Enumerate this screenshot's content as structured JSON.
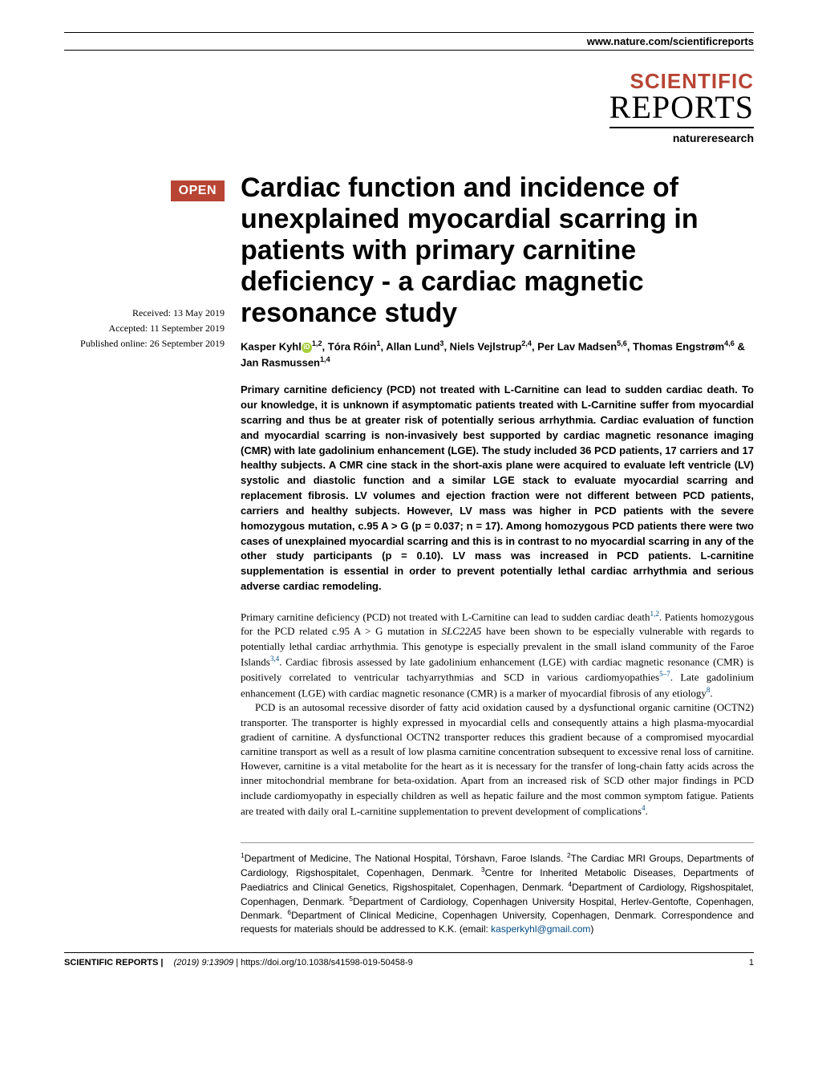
{
  "header": {
    "url": "www.nature.com/scientificreports",
    "logo_line1": "SCIENTIFIC",
    "logo_line2": "REPORTS",
    "logo_line3": "natureresearch",
    "logo_scientific_color": "#b84434"
  },
  "badge": {
    "text": "OPEN",
    "bg_color": "#b84434"
  },
  "dates": {
    "received": "Received: 13 May 2019",
    "accepted": "Accepted: 11 September 2019",
    "published": "Published online: 26 September 2019"
  },
  "title": "Cardiac function and incidence of unexplained myocardial scarring in patients with primary carnitine deficiency - a cardiac magnetic resonance study",
  "authors": {
    "a1_name": "Kasper Kyhl",
    "a1_aff": "1,2",
    "a2_name": ", Tóra Róin",
    "a2_aff": "1",
    "a3_name": ", Allan Lund",
    "a3_aff": "3",
    "a4_name": ", Niels Vejlstrup",
    "a4_aff": "2,4",
    "a5_name": ", Per Lav Madsen",
    "a5_aff": "5,6",
    "a6_name": ", Thomas Engstrøm",
    "a6_aff": "4,6",
    "a7_name": " & Jan Rasmussen",
    "a7_aff": "1,4"
  },
  "abstract": "Primary carnitine deficiency (PCD) not treated with L-Carnitine can lead to sudden cardiac death. To our knowledge, it is unknown if asymptomatic patients treated with L-Carnitine suffer from myocardial scarring and thus be at greater risk of potentially serious arrhythmia. Cardiac evaluation of function and myocardial scarring is non-invasively best supported by cardiac magnetic resonance imaging (CMR) with late gadolinium enhancement (LGE). The study included 36 PCD patients, 17 carriers and 17 healthy subjects. A CMR cine stack in the short-axis plane were acquired to evaluate left ventricle (LV) systolic and diastolic function and a similar LGE stack to evaluate myocardial scarring and replacement fibrosis. LV volumes and ejection fraction were not different between PCD patients, carriers and healthy subjects. However, LV mass was higher in PCD patients with the severe homozygous mutation, c.95 A > G (p = 0.037; n = 17). Among homozygous PCD patients there were two cases of unexplained myocardial scarring and this is in contrast to no myocardial scarring in any of the other study participants (p = 0.10). LV mass was increased in PCD patients. L-carnitine supplementation is essential in order to prevent potentially lethal cardiac arrhythmia and serious adverse cardiac remodeling.",
  "body": {
    "p1_a": "Primary carnitine deficiency (PCD) not treated with L-Carnitine can lead to sudden cardiac death",
    "p1_ref1": "1,2",
    "p1_b": ". Patients homozygous for the PCD related c.95 A > G mutation in ",
    "p1_italic": "SLC22A5",
    "p1_c": " have been shown to be especially vulnerable with regards to potentially lethal cardiac arrhythmia. This genotype is especially prevalent in the small island community of the Faroe Islands",
    "p1_ref2": "3,4",
    "p1_d": ". Cardiac fibrosis assessed by late gadolinium enhancement (LGE) with cardiac magnetic resonance (CMR) is positively correlated to ventricular tachyarrythmias and SCD in various cardiomyopathies",
    "p1_ref3": "5–7",
    "p1_e": ". Late gadolinium enhancement (LGE) with cardiac magnetic resonance (CMR) is a marker of myocardial fibrosis of any etiology",
    "p1_ref4": "8",
    "p1_f": ".",
    "p2_a": "PCD is an autosomal recessive disorder of fatty acid oxidation caused by a dysfunctional organic carnitine (OCTN2) transporter. The transporter is highly expressed in myocardial cells and consequently attains a high plasma-myocardial gradient of carnitine. A dysfunctional OCTN2 transporter reduces this gradient because of a compromised myocardial carnitine transport as well as a result of low plasma carnitine concentration subsequent to excessive renal loss of carnitine. However, carnitine is a vital metabolite for the heart as it is necessary for the transfer of long-chain fatty acids across the inner mitochondrial membrane for beta-oxidation. Apart from an increased risk of SCD other major findings in PCD include cardiomyopathy in especially children as well as hepatic failure and the most common symptom fatigue. Patients are treated with daily oral L-carnitine supplementation to prevent development of complications",
    "p2_ref1": "4",
    "p2_b": "."
  },
  "affiliations": {
    "text_a": "Department of Medicine, The National Hospital, Tórshavn, Faroe Islands. ",
    "text_b": "The Cardiac MRI Groups, Departments of Cardiology, Rigshospitalet, Copenhagen, Denmark. ",
    "text_c": "Centre for Inherited Metabolic Diseases, Departments of Paediatrics and Clinical Genetics, Rigshospitalet, Copenhagen, Denmark. ",
    "text_d": "Department of Cardiology, Rigshospitalet, Copenhagen, Denmark. ",
    "text_e": "Department of Cardiology, Copenhagen University Hospital, Herlev-Gentofte, Copenhagen, Denmark. ",
    "text_f": "Department of Clinical Medicine, Copenhagen University, Copenhagen, Denmark. Correspondence and requests for materials should be addressed to K.K. (email: ",
    "email": "kasperkyhl@gmail.com",
    "text_end": ")"
  },
  "footer": {
    "journal": "SCIENTIFIC REPORTS",
    "citation": "(2019) 9:13909",
    "doi": " | https://doi.org/10.1038/s41598-019-50458-9",
    "page": "1"
  },
  "colors": {
    "brand_red": "#b84434",
    "link_blue": "#004b83",
    "orcid_green": "#a6ce39"
  }
}
